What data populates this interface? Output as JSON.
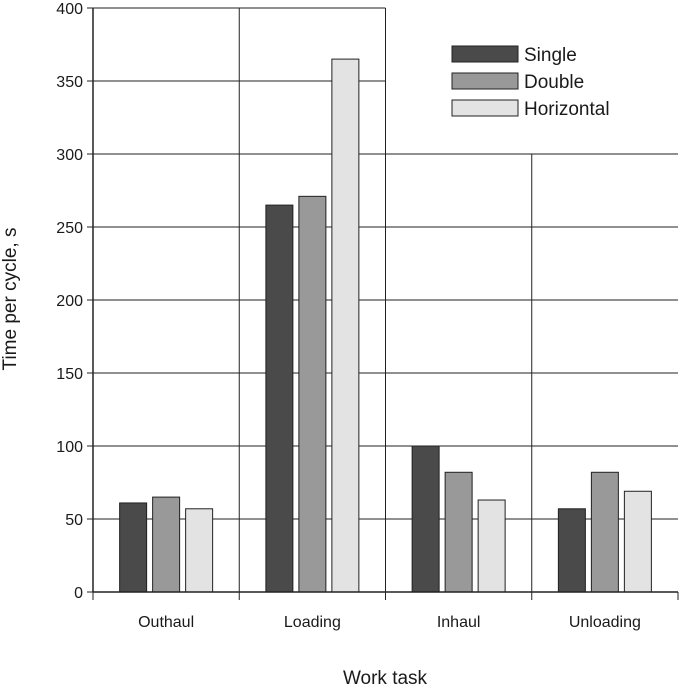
{
  "chart_data": {
    "type": "bar",
    "title": "",
    "xlabel": "Work task",
    "ylabel": "Time per cycle, s",
    "ylim": [
      0,
      400
    ],
    "yticks": [
      0,
      50,
      100,
      150,
      200,
      250,
      300,
      350,
      400
    ],
    "categories": [
      "Outhaul",
      "Loading",
      "Inhaul",
      "Unloading"
    ],
    "series": [
      {
        "name": "Single",
        "color": "#4a4a4a",
        "values": [
          61,
          265,
          100,
          57
        ]
      },
      {
        "name": "Double",
        "color": "#999999",
        "values": [
          65,
          271,
          82,
          82
        ]
      },
      {
        "name": "Horizontal",
        "color": "#e3e3e3",
        "values": [
          57,
          365,
          63,
          69
        ]
      }
    ],
    "grid": true,
    "legend_position": "top-right"
  }
}
